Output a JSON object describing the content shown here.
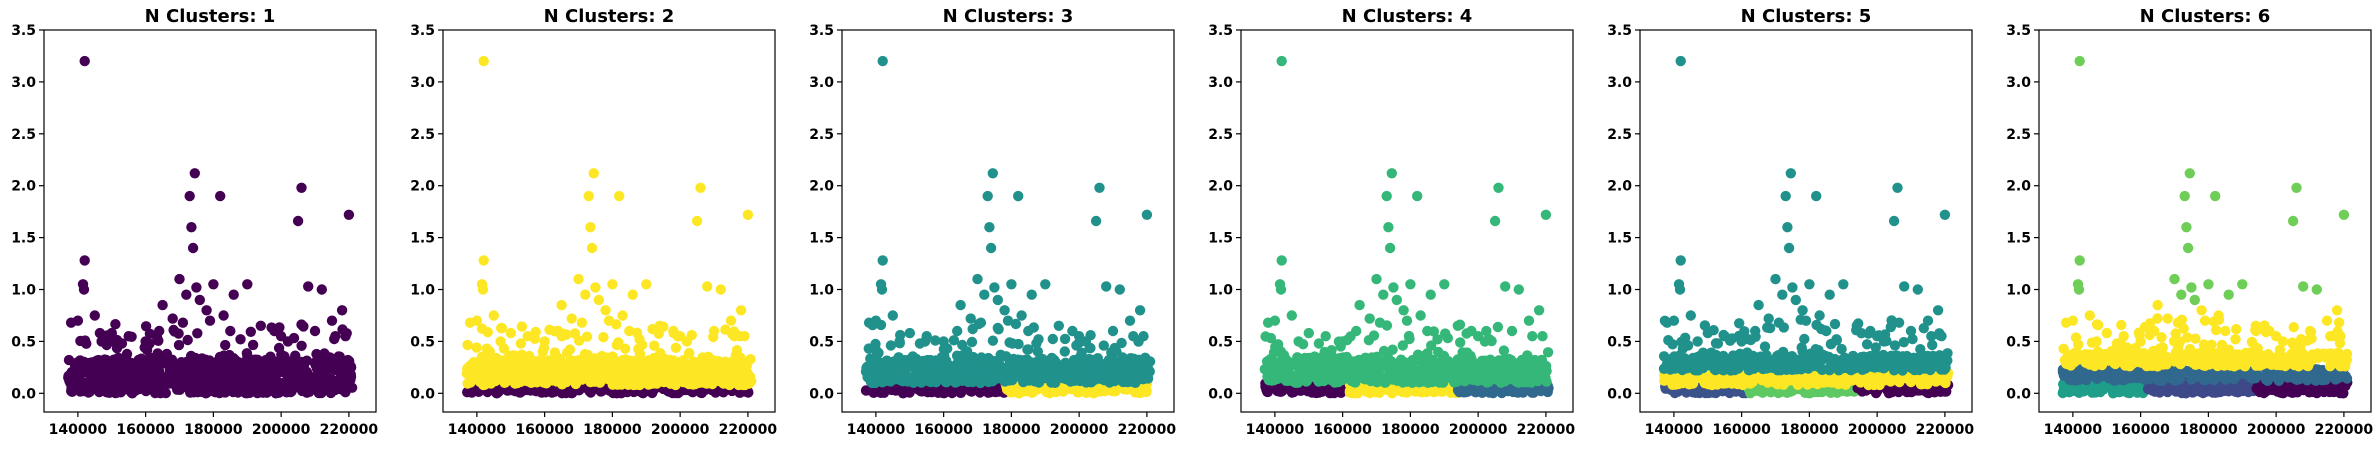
{
  "chart_data": [
    {
      "type": "scatter",
      "title": "N Clusters: 1",
      "xlim": [
        130000,
        228000
      ],
      "ylim": [
        -0.18,
        3.5
      ],
      "x_ticks": [
        140000,
        160000,
        180000,
        200000,
        220000
      ],
      "y_ticks": [
        0.0,
        0.5,
        1.0,
        1.5,
        2.0,
        2.5,
        3.0,
        3.5
      ],
      "grid": false,
      "clusters": [
        {
          "color": "#440154",
          "bands": [
            {
              "x": [
                137000,
                221000
              ],
              "y": [
                0.0,
                0.32
              ]
            }
          ],
          "outliers": "all"
        }
      ]
    },
    {
      "type": "scatter",
      "title": "N Clusters: 2",
      "xlim": [
        130000,
        228000
      ],
      "ylim": [
        -0.18,
        3.5
      ],
      "x_ticks": [
        140000,
        160000,
        180000,
        200000,
        220000
      ],
      "y_ticks": [
        0.0,
        0.5,
        1.0,
        1.5,
        2.0,
        2.5,
        3.0,
        3.5
      ],
      "grid": false,
      "clusters": [
        {
          "color": "#440154",
          "bands": [
            {
              "x": [
                137000,
                221000
              ],
              "y": [
                0.0,
                0.08
              ]
            }
          ]
        },
        {
          "color": "#fde725",
          "bands": [
            {
              "x": [
                137000,
                221000
              ],
              "y": [
                0.08,
                0.32
              ]
            }
          ],
          "outliers": "all"
        }
      ]
    },
    {
      "type": "scatter",
      "title": "N Clusters: 3",
      "xlim": [
        130000,
        228000
      ],
      "ylim": [
        -0.18,
        3.5
      ],
      "x_ticks": [
        140000,
        160000,
        180000,
        200000,
        220000
      ],
      "y_ticks": [
        0.0,
        0.5,
        1.0,
        1.5,
        2.0,
        2.5,
        3.0,
        3.5
      ],
      "grid": false,
      "clusters": [
        {
          "color": "#440154",
          "bands": [
            {
              "x": [
                137000,
                178000
              ],
              "y": [
                0.0,
                0.1
              ]
            }
          ]
        },
        {
          "color": "#fde725",
          "bands": [
            {
              "x": [
                178000,
                221000
              ],
              "y": [
                0.0,
                0.1
              ]
            }
          ]
        },
        {
          "color": "#21918c",
          "bands": [
            {
              "x": [
                137000,
                221000
              ],
              "y": [
                0.1,
                0.32
              ]
            }
          ],
          "outliers": "all"
        }
      ]
    },
    {
      "type": "scatter",
      "title": "N Clusters: 4",
      "xlim": [
        130000,
        228000
      ],
      "ylim": [
        -0.18,
        3.5
      ],
      "x_ticks": [
        140000,
        160000,
        180000,
        200000,
        220000
      ],
      "y_ticks": [
        0.0,
        0.5,
        1.0,
        1.5,
        2.0,
        2.5,
        3.0,
        3.5
      ],
      "grid": false,
      "clusters": [
        {
          "color": "#440154",
          "bands": [
            {
              "x": [
                137000,
                162000
              ],
              "y": [
                0.0,
                0.1
              ]
            }
          ]
        },
        {
          "color": "#fde725",
          "bands": [
            {
              "x": [
                162000,
                194000
              ],
              "y": [
                0.0,
                0.1
              ]
            }
          ]
        },
        {
          "color": "#31688e",
          "bands": [
            {
              "x": [
                194000,
                221000
              ],
              "y": [
                0.0,
                0.1
              ]
            }
          ]
        },
        {
          "color": "#35b779",
          "bands": [
            {
              "x": [
                137000,
                221000
              ],
              "y": [
                0.1,
                0.32
              ]
            }
          ],
          "outliers": "all"
        }
      ]
    },
    {
      "type": "scatter",
      "title": "N Clusters: 5",
      "xlim": [
        130000,
        228000
      ],
      "ylim": [
        -0.18,
        3.5
      ],
      "x_ticks": [
        140000,
        160000,
        180000,
        200000,
        220000
      ],
      "y_ticks": [
        0.0,
        0.5,
        1.0,
        1.5,
        2.0,
        2.5,
        3.0,
        3.5
      ],
      "grid": false,
      "clusters": [
        {
          "color": "#3b528b",
          "bands": [
            {
              "x": [
                137000,
                162000
              ],
              "y": [
                0.0,
                0.08
              ]
            }
          ]
        },
        {
          "color": "#5ec962",
          "bands": [
            {
              "x": [
                162000,
                194000
              ],
              "y": [
                0.0,
                0.08
              ]
            }
          ]
        },
        {
          "color": "#440154",
          "bands": [
            {
              "x": [
                194000,
                221000
              ],
              "y": [
                0.0,
                0.08
              ]
            }
          ]
        },
        {
          "color": "#fde725",
          "bands": [
            {
              "x": [
                137000,
                221000
              ],
              "y": [
                0.08,
                0.22
              ]
            }
          ]
        },
        {
          "color": "#21918c",
          "bands": [
            {
              "x": [
                137000,
                221000
              ],
              "y": [
                0.22,
                0.36
              ]
            }
          ],
          "outliers": "all"
        }
      ]
    },
    {
      "type": "scatter",
      "title": "N Clusters: 6",
      "xlim": [
        130000,
        228000
      ],
      "ylim": [
        -0.18,
        3.5
      ],
      "x_ticks": [
        140000,
        160000,
        180000,
        200000,
        220000
      ],
      "y_ticks": [
        0.0,
        0.5,
        1.0,
        1.5,
        2.0,
        2.5,
        3.0,
        3.5
      ],
      "grid": false,
      "clusters": [
        {
          "color": "#1f9e89",
          "bands": [
            {
              "x": [
                137000,
                162000
              ],
              "y": [
                0.0,
                0.12
              ]
            }
          ]
        },
        {
          "color": "#3e4989",
          "bands": [
            {
              "x": [
                162000,
                194000
              ],
              "y": [
                0.0,
                0.12
              ]
            }
          ]
        },
        {
          "color": "#440154",
          "bands": [
            {
              "x": [
                194000,
                221000
              ],
              "y": [
                0.0,
                0.12
              ]
            }
          ]
        },
        {
          "color": "#31688e",
          "bands": [
            {
              "x": [
                137000,
                221000
              ],
              "y": [
                0.12,
                0.26
              ]
            }
          ]
        },
        {
          "color": "#fde725",
          "bands": [
            {
              "x": [
                137000,
                221000
              ],
              "y": [
                0.26,
                0.38
              ]
            }
          ],
          "outliers": "upper"
        },
        {
          "outliers": "high",
          "color": "#6ece58"
        }
      ]
    }
  ],
  "shared_outliers": [
    [
      142000,
      3.2
    ],
    [
      142000,
      1.28
    ],
    [
      141500,
      1.05
    ],
    [
      141800,
      1.0
    ],
    [
      140000,
      0.7
    ],
    [
      138000,
      0.68
    ],
    [
      145000,
      0.75
    ],
    [
      150000,
      0.58
    ],
    [
      155000,
      0.55
    ],
    [
      160000,
      0.5
    ],
    [
      165000,
      0.85
    ],
    [
      168000,
      0.72
    ],
    [
      170000,
      1.1
    ],
    [
      172000,
      0.95
    ],
    [
      173000,
      1.9
    ],
    [
      173500,
      1.6
    ],
    [
      174000,
      1.4
    ],
    [
      174500,
      2.12
    ],
    [
      175000,
      1.02
    ],
    [
      176000,
      0.9
    ],
    [
      178000,
      0.8
    ],
    [
      182000,
      1.9
    ],
    [
      180000,
      1.05
    ],
    [
      183000,
      0.75
    ],
    [
      186000,
      0.95
    ],
    [
      190000,
      1.05
    ],
    [
      194000,
      0.65
    ],
    [
      200000,
      0.55
    ],
    [
      205000,
      1.66
    ],
    [
      206000,
      1.98
    ],
    [
      208000,
      1.03
    ],
    [
      212000,
      1.0
    ],
    [
      215000,
      0.7
    ],
    [
      218000,
      0.8
    ],
    [
      220000,
      1.72
    ],
    [
      219000,
      0.55
    ],
    [
      164000,
      0.6
    ],
    [
      185000,
      0.6
    ],
    [
      198000,
      0.6
    ],
    [
      210000,
      0.6
    ],
    [
      179000,
      0.7
    ],
    [
      171000,
      0.68
    ],
    [
      147000,
      0.5
    ],
    [
      153000,
      0.48
    ],
    [
      188000,
      0.52
    ],
    [
      202000,
      0.5
    ],
    [
      216000,
      0.55
    ]
  ]
}
